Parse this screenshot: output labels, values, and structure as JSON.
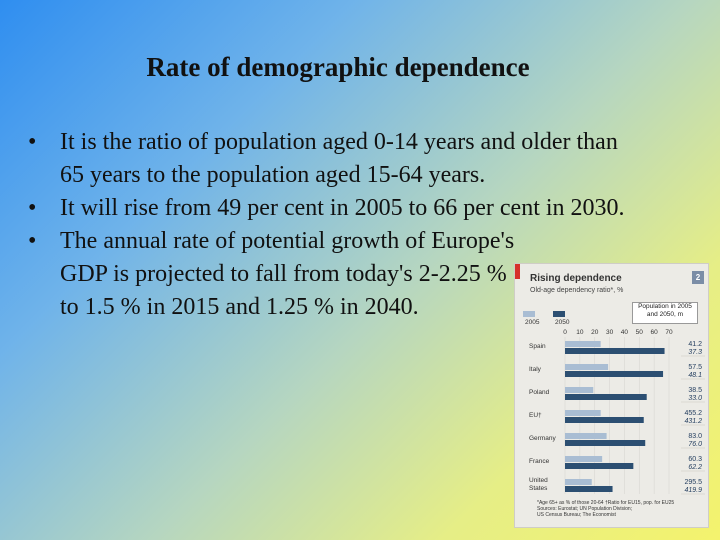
{
  "slide": {
    "title": "Rate of demographic dependence",
    "bullets": [
      "It is the ratio of population aged 0-14 years and older than 65 years to the population aged 15-64 years.",
      "It will rise from 49 per cent in 2005 to 66 per cent in 2030.",
      "The annual rate of potential growth of Europe's GDP is projected to fall from today's 2-2.25 % to 1.5 % in 2015 and 1.25 % in 2040."
    ],
    "bullet_glyph": "•"
  },
  "chart_data": {
    "type": "bar",
    "title": "Rising dependence",
    "subtitle": "Old-age dependency ratio*, %",
    "figure_number": "2",
    "categories": [
      "Spain",
      "Italy",
      "Poland",
      "EU†",
      "Germany",
      "France",
      "United States"
    ],
    "series": [
      {
        "name": "2005",
        "values": [
          24,
          29,
          19,
          24,
          28,
          25,
          18
        ],
        "color": "#a9bdd3"
      },
      {
        "name": "2050",
        "values": [
          67,
          66,
          55,
          53,
          54,
          46,
          32
        ],
        "color": "#2c4f72"
      }
    ],
    "x_ticks": [
      "0",
      "10",
      "20",
      "30",
      "40",
      "50",
      "60",
      "70"
    ],
    "xlim": [
      0,
      70
    ],
    "population_box": {
      "title": "Population in 2005 and 2050, m",
      "values_2005": [
        "41.2",
        "57.5",
        "38.5",
        "455.2",
        "83.0",
        "60.3",
        "295.5"
      ],
      "values_2050": [
        "37.3",
        "48.1",
        "33.0",
        "431.2",
        "76.0",
        "62.2",
        "419.9"
      ]
    },
    "footnotes": [
      "*Age 65+ as % of those 20-64   †Ratio for EU15, pop. for EU25",
      "Sources: Eurostat; UN Population Division;",
      "US Census Bureau; The Economist"
    ]
  }
}
